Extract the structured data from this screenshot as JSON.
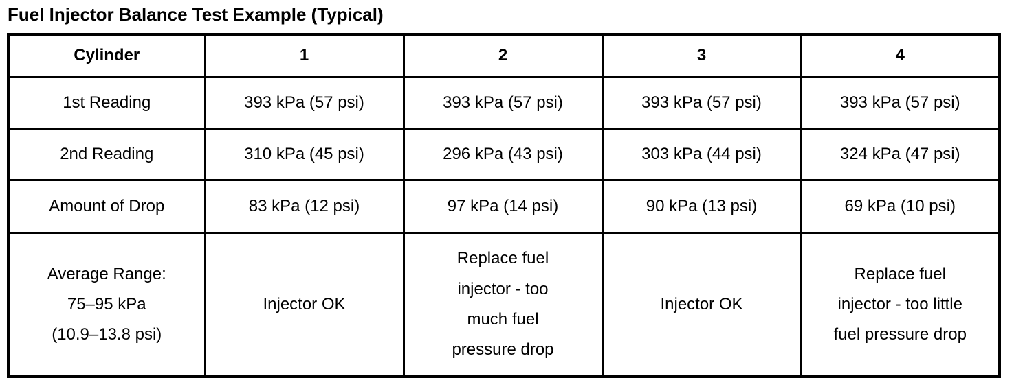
{
  "page_title": "Fuel Injector Balance Test Example (Typical)",
  "colors": {
    "background": "#ffffff",
    "text": "#000000",
    "table_border": "#000000"
  },
  "table": {
    "header": [
      "Cylinder",
      "1",
      "2",
      "3",
      "4"
    ],
    "rows": [
      {
        "label": "1st Reading",
        "cells": [
          "393 kPa (57 psi)",
          "393 kPa (57 psi)",
          "393 kPa (57 psi)",
          "393 kPa (57 psi)"
        ]
      },
      {
        "label": "2nd Reading",
        "cells": [
          "310 kPa (45 psi)",
          "296 kPa (43 psi)",
          "303 kPa (44 psi)",
          "324 kPa (47 psi)"
        ]
      },
      {
        "label": "Amount of Drop",
        "cells": [
          "83 kPa (12 psi)",
          "97 kPa (14 psi)",
          "90 kPa (13 psi)",
          "69 kPa (10 psi)"
        ]
      },
      {
        "label": "Average Range:\n75–95 kPa\n(10.9–13.8 psi)",
        "cells": [
          "Injector OK",
          "Replace fuel\ninjector - too\nmuch fuel\npressure drop",
          "Injector OK",
          "Replace fuel\ninjector - too little\nfuel pressure drop"
        ]
      }
    ]
  }
}
